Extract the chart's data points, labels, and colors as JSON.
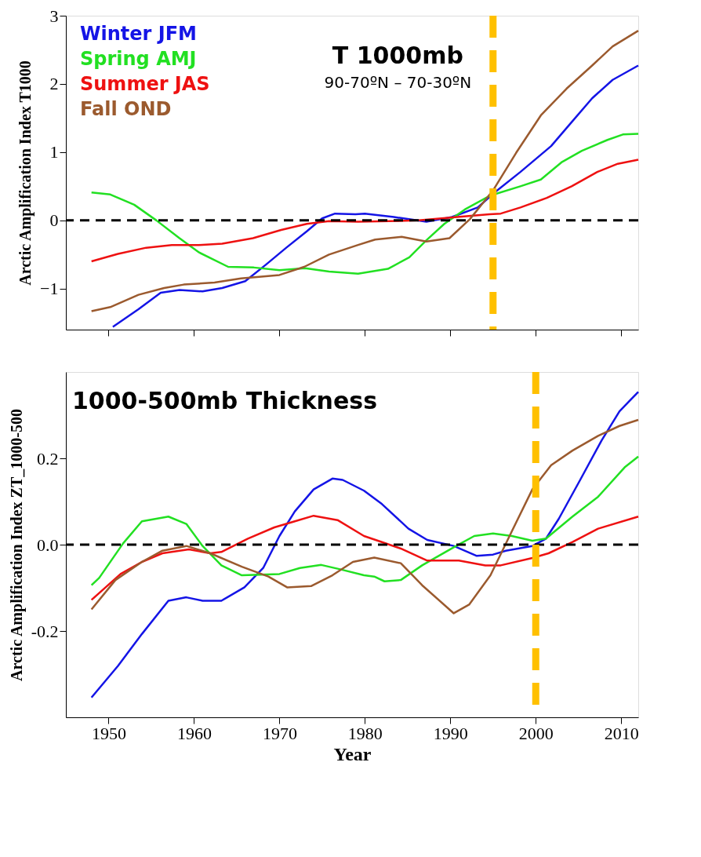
{
  "chart_data": [
    {
      "type": "line",
      "title": "T 1000mb",
      "subtitle": "90-70ºN – 70-30ºN",
      "ylabel": "Arctic Amplification Index T1000",
      "xlim": [
        1945,
        2012
      ],
      "xticks": [
        1950,
        1960,
        1970,
        1980,
        1990,
        2000,
        2010
      ],
      "ylim": [
        -1.6,
        3
      ],
      "yticks": [
        -1,
        0,
        1,
        2,
        3
      ],
      "tick_labels": "y",
      "grid": false,
      "legend": "top left",
      "line_style": "solid",
      "marker": "none",
      "series": [
        {
          "name": "Winter   JFM",
          "color": "#1414e6",
          "x": [
            1950.5,
            1953.5,
            1956.1,
            1958.3,
            1961,
            1963.3,
            1966,
            1968.4,
            1970.8,
            1973.2,
            1975,
            1976.5,
            1978.9,
            1980,
            1983.4,
            1987.2,
            1990.2,
            1993.2,
            1995.3,
            1998.2,
            2001.8,
            2004.2,
            2006.6,
            2009,
            2012
          ],
          "values": [
            -1.56,
            -1.3,
            -1.06,
            -1.02,
            -1.04,
            -0.99,
            -0.89,
            -0.65,
            -0.4,
            -0.16,
            0.03,
            0.1,
            0.09,
            0.1,
            0.05,
            -0.02,
            0.05,
            0.19,
            0.42,
            0.71,
            1.09,
            1.44,
            1.79,
            2.06,
            2.27
          ]
        },
        {
          "name": "Spring   AMJ",
          "color": "#22e022",
          "x": [
            1948,
            1950.2,
            1953,
            1955.6,
            1958.3,
            1960.6,
            1964,
            1967,
            1970,
            1973,
            1975.8,
            1979.2,
            1982.7,
            1985.2,
            1987.2,
            1989.3,
            1991.7,
            1994.6,
            1998.2,
            2000.6,
            2003,
            2005.4,
            2008.4,
            2010.2,
            2012
          ],
          "values": [
            0.41,
            0.38,
            0.23,
            0,
            -0.26,
            -0.47,
            -0.68,
            -0.69,
            -0.73,
            -0.7,
            -0.75,
            -0.78,
            -0.71,
            -0.54,
            -0.29,
            -0.05,
            0.16,
            0.36,
            0.5,
            0.6,
            0.85,
            1.02,
            1.18,
            1.26,
            1.27
          ]
        },
        {
          "name": "Summer  JAS",
          "color": "#ee1111",
          "x": [
            1948,
            1951.1,
            1954.4,
            1957.4,
            1960.6,
            1963.3,
            1966.9,
            1970.2,
            1973.2,
            1975.8,
            1979.2,
            1986.3,
            1990.8,
            1994.6,
            1995.9,
            1998.2,
            2001.3,
            2004.2,
            2007.2,
            2009.6,
            2012
          ],
          "values": [
            -0.6,
            -0.49,
            -0.4,
            -0.36,
            -0.36,
            -0.34,
            -0.26,
            -0.14,
            -0.05,
            -0.01,
            -0.02,
            0,
            0.05,
            0.09,
            0.1,
            0.19,
            0.33,
            0.5,
            0.71,
            0.83,
            0.89
          ]
        },
        {
          "name": "Fall         OND",
          "color": "#9b5a2e",
          "x": [
            1948,
            1950.2,
            1953.5,
            1956.5,
            1958.8,
            1962.4,
            1965.5,
            1970,
            1972.9,
            1975.8,
            1979.2,
            1981.2,
            1984.3,
            1987.2,
            1989.9,
            1992.3,
            1995,
            1997.7,
            2000.6,
            2003.6,
            2006.6,
            2009,
            2012
          ],
          "values": [
            -1.33,
            -1.27,
            -1.09,
            -0.99,
            -0.94,
            -0.91,
            -0.85,
            -0.8,
            -0.68,
            -0.5,
            -0.36,
            -0.28,
            -0.24,
            -0.31,
            -0.26,
            0.02,
            0.44,
            0.99,
            1.54,
            1.93,
            2.27,
            2.55,
            2.78
          ]
        }
      ],
      "ref_lines": [
        {
          "axis": "y",
          "value": 0,
          "color": "#000000",
          "line_style": "dashed"
        },
        {
          "axis": "x",
          "value": 1995,
          "color": "#ffc000",
          "line_style": "dashed"
        }
      ]
    },
    {
      "type": "line",
      "title": "1000-500mb Thickness",
      "xlabel": "Year",
      "ylabel": "Arctic Amplification Index ZT_1000-500",
      "xlim": [
        1945,
        2012
      ],
      "xticks": [
        1950,
        1960,
        1970,
        1980,
        1990,
        2000,
        2010
      ],
      "ylim": [
        -0.4,
        0.4
      ],
      "yticks": [
        {
          "value": -0.2,
          "label": "-0.2"
        },
        {
          "value": 0,
          "label": "0.0"
        },
        {
          "value": 0.2,
          "label": "0.2"
        }
      ],
      "grid": false,
      "line_style": "solid",
      "marker": "none",
      "series": [
        {
          "color": "#1414e6",
          "x": [
            1948,
            1951.1,
            1953.9,
            1957,
            1959.1,
            1961,
            1963.2,
            1965.9,
            1968.1,
            1970,
            1971.8,
            1974,
            1976.2,
            1977.4,
            1979.9,
            1982,
            1985.1,
            1987.3,
            1990.4,
            1993.1,
            1995,
            1996.5,
            1999.6,
            2001.2,
            2002.7,
            2005.2,
            2007.7,
            2009.8,
            2012
          ],
          "values": [
            -0.354,
            -0.281,
            -0.207,
            -0.13,
            -0.122,
            -0.13,
            -0.13,
            -0.099,
            -0.054,
            0.02,
            0.077,
            0.128,
            0.153,
            0.15,
            0.125,
            0.094,
            0.037,
            0.011,
            -0.003,
            -0.026,
            -0.023,
            -0.014,
            -0.003,
            0.014,
            0.06,
            0.15,
            0.241,
            0.309,
            0.354
          ]
        },
        {
          "color": "#22e022",
          "x": [
            1948,
            1948.9,
            1951.7,
            1953.9,
            1957,
            1959.1,
            1961,
            1963.2,
            1965.6,
            1970,
            1972.4,
            1974.9,
            1977.1,
            1979.9,
            1981.1,
            1982.3,
            1984.2,
            1986.7,
            1990.4,
            1992.8,
            1995,
            1997.2,
            1999.6,
            2001.2,
            2004.3,
            2007.3,
            2010.4,
            2012
          ],
          "values": [
            -0.094,
            -0.077,
            0.003,
            0.054,
            0.065,
            0.048,
            -0.003,
            -0.048,
            -0.071,
            -0.068,
            -0.054,
            -0.047,
            -0.057,
            -0.071,
            -0.074,
            -0.085,
            -0.082,
            -0.048,
            -0.006,
            0.02,
            0.026,
            0.02,
            0.009,
            0.014,
            0.065,
            0.111,
            0.179,
            0.204
          ]
        },
        {
          "color": "#ee1111",
          "x": [
            1948,
            1951.4,
            1953.9,
            1956.3,
            1959.4,
            1961.9,
            1963.2,
            1966.3,
            1969.4,
            1971.8,
            1974,
            1976.8,
            1979.9,
            1982,
            1984.2,
            1987.3,
            1991,
            1994.1,
            1995.9,
            1999.6,
            2001.5,
            2004.3,
            2007.3,
            2012
          ],
          "values": [
            -0.128,
            -0.068,
            -0.04,
            -0.02,
            -0.011,
            -0.02,
            -0.017,
            0.014,
            0.04,
            0.054,
            0.067,
            0.057,
            0.02,
            0.006,
            -0.009,
            -0.037,
            -0.037,
            -0.048,
            -0.048,
            -0.031,
            -0.02,
            0.006,
            0.037,
            0.065
          ]
        },
        {
          "color": "#9b5a2e",
          "x": [
            1948,
            1950.8,
            1953.9,
            1956.3,
            1959.1,
            1961.9,
            1965.6,
            1968.7,
            1970.9,
            1973.7,
            1976.2,
            1978.6,
            1981.1,
            1984.2,
            1986.7,
            1990.4,
            1992.2,
            1994.7,
            1997.2,
            1999.6,
            2001.8,
            2004.3,
            2007.3,
            2009.8,
            2012
          ],
          "values": [
            -0.15,
            -0.082,
            -0.04,
            -0.014,
            -0.003,
            -0.02,
            -0.051,
            -0.074,
            -0.099,
            -0.096,
            -0.071,
            -0.04,
            -0.03,
            -0.043,
            -0.094,
            -0.159,
            -0.139,
            -0.071,
            0.031,
            0.128,
            0.184,
            0.218,
            0.252,
            0.275,
            0.289
          ]
        }
      ],
      "ref_lines": [
        {
          "axis": "y",
          "value": 0,
          "color": "#000000",
          "line_style": "dashed"
        },
        {
          "axis": "x",
          "value": 2000,
          "color": "#ffc000",
          "line_style": "dashed"
        }
      ]
    }
  ]
}
